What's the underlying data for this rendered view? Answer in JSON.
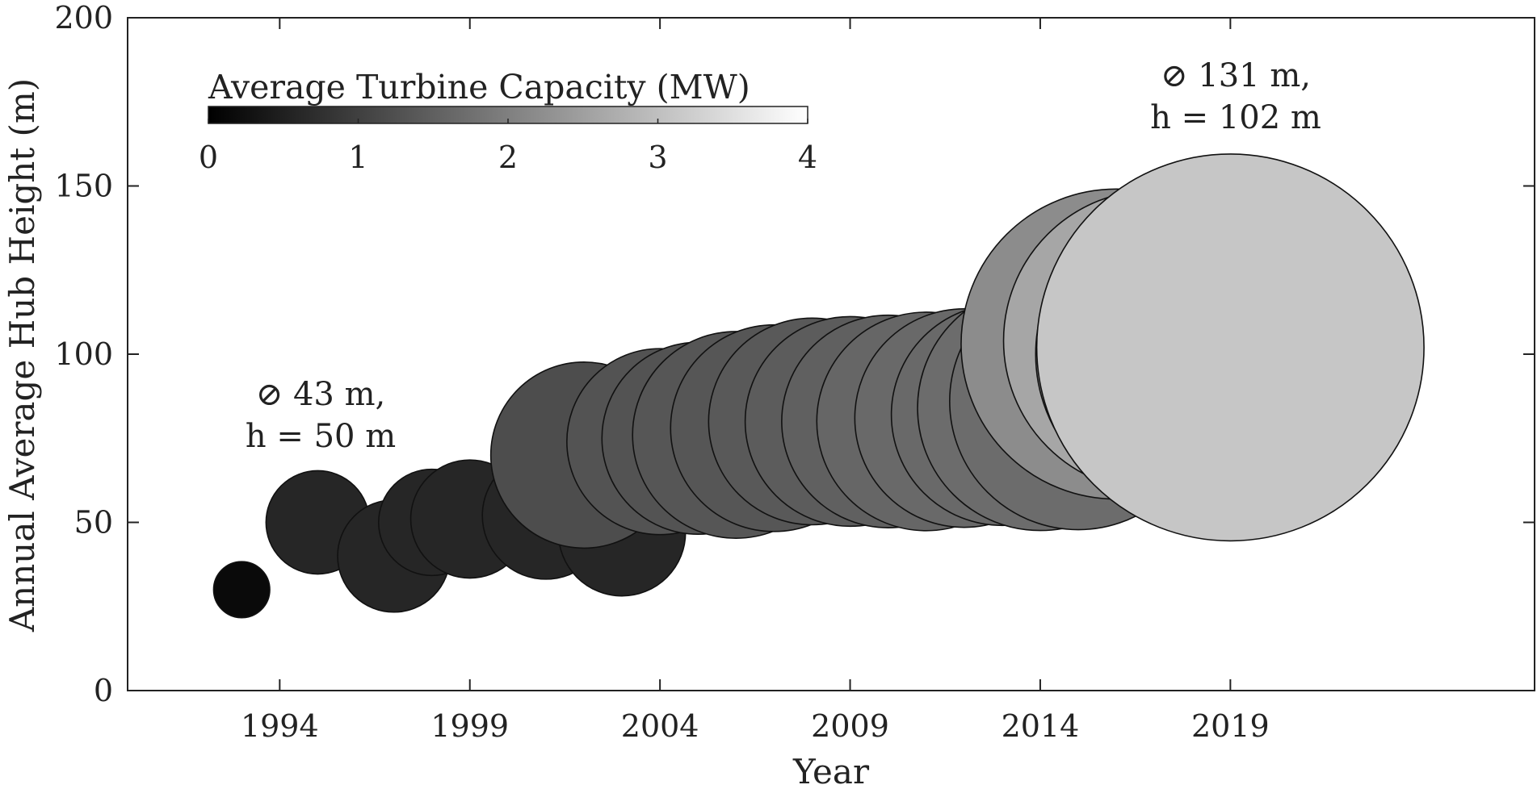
{
  "chart_data": {
    "type": "scatter",
    "xlabel": "Year",
    "ylabel": "Annual Average Hub Height (m)",
    "xlim": [
      1990,
      2027
    ],
    "ylim": [
      0,
      200
    ],
    "xticks": [
      1994,
      1999,
      2004,
      2009,
      2014,
      2019
    ],
    "yticks": [
      0,
      50,
      100,
      150,
      200
    ],
    "grid": false,
    "colorbar": {
      "title": "Average Turbine Capacity (MW)",
      "range": [
        0,
        4
      ],
      "ticks": [
        0,
        1,
        2,
        3,
        4
      ],
      "colormap": "gray"
    },
    "size_variable": "rotor diameter (m)",
    "points": [
      {
        "year": 1993,
        "hub_height": 30,
        "rotor_diameter": 19,
        "capacity": 0.15
      },
      {
        "year": 1995,
        "hub_height": 50,
        "rotor_diameter": 35,
        "capacity": 0.6
      },
      {
        "year": 1997,
        "hub_height": 40,
        "rotor_diameter": 38,
        "capacity": 0.6
      },
      {
        "year": 1998,
        "hub_height": 50,
        "rotor_diameter": 36,
        "capacity": 0.6
      },
      {
        "year": 1999,
        "hub_height": 51,
        "rotor_diameter": 40,
        "capacity": 0.6
      },
      {
        "year": 2001,
        "hub_height": 52,
        "rotor_diameter": 43,
        "capacity": 0.6
      },
      {
        "year": 2003,
        "hub_height": 47,
        "rotor_diameter": 43,
        "capacity": 0.6
      },
      {
        "year": 2002,
        "hub_height": 70,
        "rotor_diameter": 63,
        "capacity": 1.2
      },
      {
        "year": 2004,
        "hub_height": 74,
        "rotor_diameter": 63,
        "capacity": 1.3
      },
      {
        "year": 2005,
        "hub_height": 75,
        "rotor_diameter": 65,
        "capacity": 1.3
      },
      {
        "year": 2006,
        "hub_height": 76,
        "rotor_diameter": 70,
        "capacity": 1.35
      },
      {
        "year": 2007,
        "hub_height": 78,
        "rotor_diameter": 70,
        "capacity": 1.35
      },
      {
        "year": 2008,
        "hub_height": 80,
        "rotor_diameter": 70,
        "capacity": 1.4
      },
      {
        "year": 2009,
        "hub_height": 80,
        "rotor_diameter": 71,
        "capacity": 1.45
      },
      {
        "year": 2010,
        "hub_height": 80,
        "rotor_diameter": 72,
        "capacity": 1.5
      },
      {
        "year": 2011,
        "hub_height": 80,
        "rotor_diameter": 74,
        "capacity": 1.6
      },
      {
        "year": 2012,
        "hub_height": 81,
        "rotor_diameter": 74,
        "capacity": 1.65
      },
      {
        "year": 2013,
        "hub_height": 82,
        "rotor_diameter": 75,
        "capacity": 1.65
      },
      {
        "year": 2014,
        "hub_height": 84,
        "rotor_diameter": 83,
        "capacity": 1.7
      },
      {
        "year": 2015,
        "hub_height": 86,
        "rotor_diameter": 87,
        "capacity": 1.7
      },
      {
        "year": 2016,
        "hub_height": 103,
        "rotor_diameter": 105,
        "capacity": 2.2
      },
      {
        "year": 2017,
        "hub_height": 104,
        "rotor_diameter": 102,
        "capacity": 2.6
      },
      {
        "year": 2018,
        "hub_height": 100,
        "rotor_diameter": 106,
        "capacity": 2.4
      },
      {
        "year": 2019,
        "hub_height": 102,
        "rotor_diameter": 131,
        "capacity": 3.1
      }
    ],
    "annotations": [
      {
        "line1": "⊘ 43 m,",
        "line2": "h = 50 m"
      },
      {
        "line1": "⊘ 131 m,",
        "line2": "h = 102 m"
      }
    ]
  }
}
